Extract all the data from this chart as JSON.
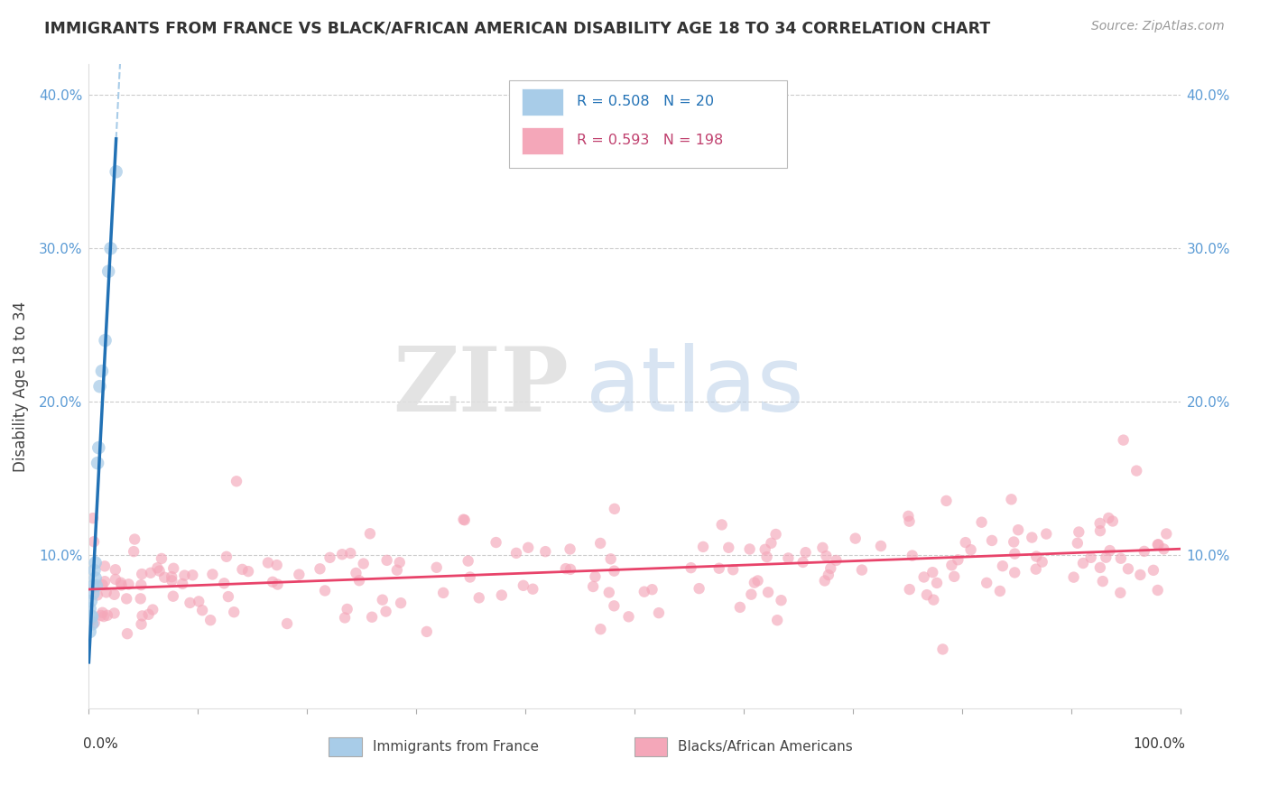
{
  "title": "IMMIGRANTS FROM FRANCE VS BLACK/AFRICAN AMERICAN DISABILITY AGE 18 TO 34 CORRELATION CHART",
  "source": "Source: ZipAtlas.com",
  "ylabel": "Disability Age 18 to 34",
  "xlim": [
    0.0,
    1.0
  ],
  "ylim": [
    0.0,
    0.42
  ],
  "yticks": [
    0.1,
    0.2,
    0.3,
    0.4
  ],
  "ytick_labels": [
    "10.0%",
    "20.0%",
    "30.0%",
    "40.0%"
  ],
  "legend_r1": "R = 0.508",
  "legend_n1": "N = 20",
  "legend_r2": "R = 0.593",
  "legend_n2": "N = 198",
  "legend_label1": "Immigrants from France",
  "legend_label2": "Blacks/African Americans",
  "color_blue": "#a8cce8",
  "color_pink": "#f4a7b9",
  "color_blue_line": "#2171b5",
  "color_pink_line": "#e8436a",
  "color_blue_dash": "#a8cce8",
  "background": "#ffffff",
  "grid_color": "#cccccc",
  "blue_x": [
    0.001,
    0.001,
    0.002,
    0.002,
    0.003,
    0.003,
    0.004,
    0.004,
    0.005,
    0.006,
    0.006,
    0.007,
    0.008,
    0.009,
    0.01,
    0.012,
    0.015,
    0.018,
    0.02,
    0.025
  ],
  "blue_y": [
    0.065,
    0.05,
    0.07,
    0.06,
    0.055,
    0.06,
    0.08,
    0.075,
    0.09,
    0.095,
    0.085,
    0.08,
    0.16,
    0.17,
    0.21,
    0.22,
    0.24,
    0.285,
    0.3,
    0.35
  ],
  "seed": 42
}
